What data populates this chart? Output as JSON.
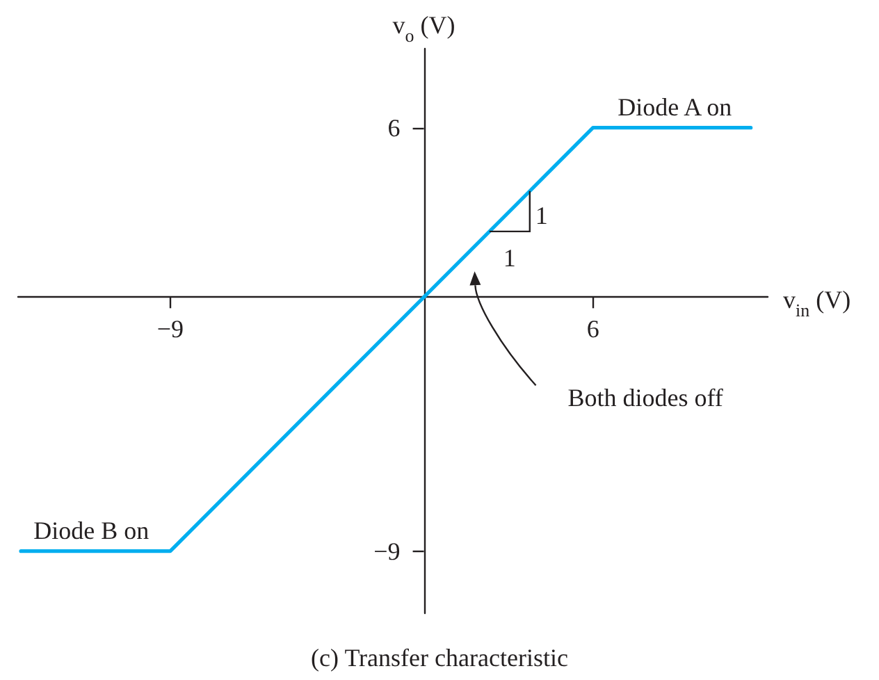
{
  "chart_data": {
    "type": "line",
    "title": "(c) Transfer characteristic",
    "xlabel": "v$_{in}$ (V)",
    "ylabel": "v$_{o}$ (V)",
    "x": [
      -14.3,
      -9,
      6,
      11.6
    ],
    "values": [
      -9,
      -9,
      6,
      6
    ],
    "color": "#00aeef",
    "marker": "none",
    "line_style": "solid",
    "xlim": [
      -14.4,
      12.2
    ],
    "ylim": [
      -11.2,
      8.8
    ],
    "xticks": [
      {
        "value": -9,
        "label": "−9"
      },
      6
    ],
    "yticks": [
      {
        "value": -9,
        "label": "−9"
      },
      6
    ],
    "annotations": [
      {
        "text": "Diode A on",
        "x": 8.9,
        "y": 6
      },
      {
        "text": "Diode B on",
        "x": -11.8,
        "y": -9
      },
      "Both diodes off",
      "1",
      "1"
    ]
  }
}
